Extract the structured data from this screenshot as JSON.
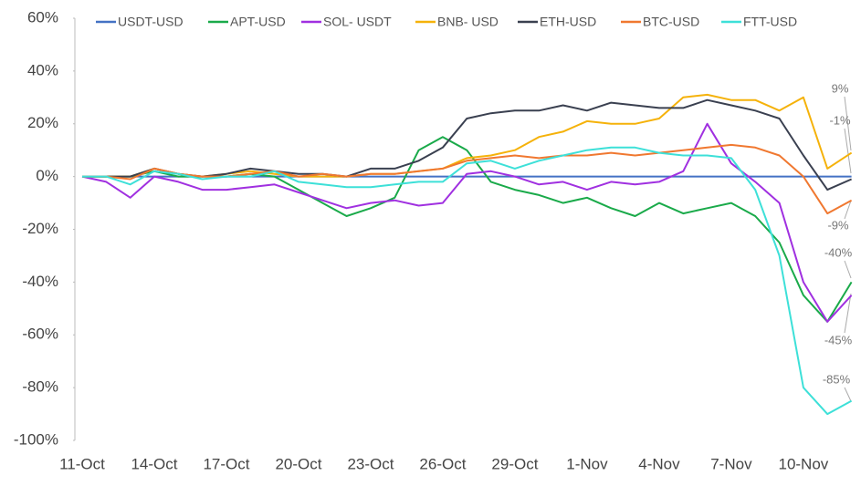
{
  "chart_data": {
    "type": "line",
    "categories": [
      "11-Oct",
      null,
      null,
      "14-Oct",
      null,
      null,
      "17-Oct",
      null,
      null,
      "20-Oct",
      null,
      null,
      "23-Oct",
      null,
      null,
      "26-Oct",
      null,
      null,
      "29-Oct",
      null,
      null,
      "1-Nov",
      null,
      null,
      "4-Nov",
      null,
      null,
      "7-Nov",
      null,
      null,
      "10-Nov",
      null,
      null
    ],
    "series": [
      {
        "name": "USDT-USD",
        "color": "#4472c4",
        "values": [
          0,
          0,
          0,
          0,
          0,
          0,
          0,
          0,
          0,
          0,
          0,
          0,
          0,
          0,
          0,
          0,
          0,
          0,
          0,
          0,
          0,
          0,
          0,
          0,
          0,
          0,
          0,
          0,
          0,
          0,
          0,
          0,
          0
        ]
      },
      {
        "name": "APT-USD",
        "color": "#1aaa4a",
        "values": [
          0,
          0,
          0,
          2,
          0,
          0,
          0,
          1,
          0,
          -5,
          -10,
          -15,
          -12,
          -8,
          10,
          15,
          10,
          -2,
          -5,
          -7,
          -10,
          -8,
          -12,
          -15,
          -10,
          -14,
          -12,
          -10,
          -15,
          -25,
          -45,
          -55,
          -40
        ]
      },
      {
        "name": "SOL- USDT",
        "color": "#a030e0",
        "values": [
          0,
          -2,
          -8,
          0,
          -2,
          -5,
          -5,
          -4,
          -3,
          -6,
          -9,
          -12,
          -10,
          -9,
          -11,
          -10,
          1,
          2,
          0,
          -3,
          -2,
          -5,
          -2,
          -3,
          -2,
          2,
          20,
          5,
          -2,
          -10,
          -40,
          -55,
          -45
        ]
      },
      {
        "name": "BNB- USD",
        "color": "#f5b20a",
        "values": [
          0,
          0,
          0,
          3,
          1,
          0,
          1,
          2,
          1,
          0,
          0,
          0,
          1,
          1,
          2,
          3,
          7,
          8,
          10,
          15,
          17,
          21,
          20,
          20,
          22,
          30,
          31,
          29,
          29,
          25,
          30,
          3,
          9
        ]
      },
      {
        "name": "ETH-USD",
        "color": "#3a4050",
        "values": [
          0,
          0,
          0,
          3,
          1,
          0,
          1,
          3,
          2,
          1,
          1,
          0,
          3,
          3,
          6,
          11,
          22,
          24,
          25,
          25,
          27,
          25,
          28,
          27,
          26,
          26,
          29,
          27,
          25,
          22,
          8,
          -5,
          -1
        ]
      },
      {
        "name": "BTC-USD",
        "color": "#f07830",
        "values": [
          0,
          0,
          -1,
          3,
          1,
          0,
          0,
          1,
          2,
          0,
          1,
          0,
          1,
          1,
          2,
          3,
          6,
          7,
          8,
          7,
          8,
          8,
          9,
          8,
          9,
          10,
          11,
          12,
          11,
          8,
          0,
          -14,
          -9
        ]
      },
      {
        "name": "FTT-USD",
        "color": "#3de0d8",
        "values": [
          0,
          0,
          -3,
          2,
          1,
          -1,
          0,
          0,
          2,
          -2,
          -3,
          -4,
          -4,
          -3,
          -2,
          -2,
          5,
          6,
          3,
          6,
          8,
          10,
          11,
          11,
          9,
          8,
          8,
          7,
          -5,
          -30,
          -80,
          -90,
          -85
        ]
      }
    ],
    "ylim": [
      -100,
      60
    ],
    "yticks": [
      {
        "value": -100,
        "label": "-100%"
      },
      {
        "value": -80,
        "label": "-80%"
      },
      {
        "value": -60,
        "label": "-60%"
      },
      {
        "value": -40,
        "label": "-40%"
      },
      {
        "value": -20,
        "label": "-20%"
      },
      {
        "value": 0,
        "label": "0%"
      },
      {
        "value": 20,
        "label": "20%"
      },
      {
        "value": 40,
        "label": "40%"
      },
      {
        "value": 60,
        "label": "60%"
      }
    ],
    "annotations": [
      "9%",
      "-1%",
      "-9%",
      "-40%",
      "-45%",
      "-85%"
    ]
  }
}
